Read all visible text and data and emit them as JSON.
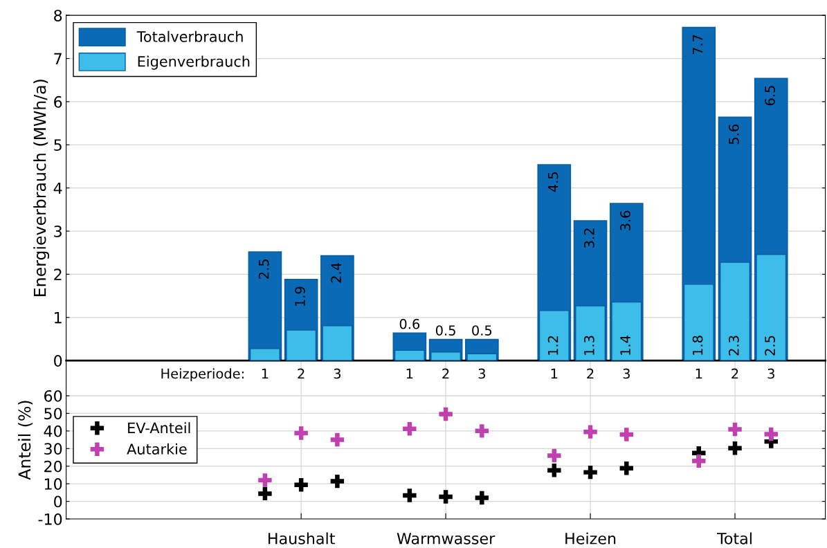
{
  "chart_data": [
    {
      "type": "bar",
      "ylabel": "Energieverbrauch (MWh/a)",
      "categories": [
        null,
        null,
        null,
        null,
        null,
        "1",
        "2",
        "3",
        null,
        "1",
        "2",
        "3",
        null,
        "1",
        "2",
        "3",
        null,
        "1",
        "2",
        "3",
        null
      ],
      "series": [
        {
          "name": "Totalverbrauch",
          "color": "#0b6ab5",
          "values": [
            null,
            null,
            null,
            null,
            null,
            2.52,
            1.88,
            2.43,
            null,
            0.64,
            0.49,
            0.49,
            null,
            4.54,
            3.24,
            3.64,
            null,
            7.72,
            5.64,
            6.54,
            null
          ],
          "value_labels": [
            null,
            null,
            null,
            null,
            null,
            "2.5",
            "1.9",
            "2.4",
            null,
            "0.6",
            "0.5",
            "0.5",
            null,
            "4.5",
            "3.2",
            "3.6",
            null,
            "7.7",
            "5.6",
            "6.5",
            null
          ]
        },
        {
          "name": "Eigenverbrauch",
          "color": "#3dbde9",
          "values": [
            null,
            null,
            null,
            null,
            null,
            0.28,
            0.71,
            0.81,
            null,
            0.24,
            0.2,
            0.16,
            null,
            1.16,
            1.27,
            1.36,
            null,
            1.77,
            2.28,
            2.46,
            null
          ],
          "value_labels": [
            null,
            null,
            null,
            null,
            null,
            null,
            null,
            null,
            null,
            null,
            null,
            null,
            null,
            "1.2",
            "1.3",
            "1.4",
            null,
            "1.8",
            "2.3",
            "2.5",
            null
          ]
        }
      ],
      "ylim": [
        0,
        8
      ],
      "yticks": [
        0,
        1,
        2,
        3,
        4,
        5,
        6,
        7,
        8
      ],
      "grid": "y",
      "legend": "top left",
      "annotations": [
        "Heizperiode:"
      ]
    },
    {
      "type": "scatter",
      "ylabel": "Anteil (%)",
      "categories": [
        null,
        null,
        null,
        null,
        null,
        null,
        "Haushalt",
        null,
        null,
        null,
        "Warmwasser",
        null,
        null,
        null,
        "Heizen",
        null,
        null,
        null,
        "Total",
        null,
        null
      ],
      "series": [
        {
          "name": "EV-Anteil",
          "color": "#000000",
          "values": [
            null,
            null,
            null,
            null,
            null,
            4.4,
            9.4,
            11.4,
            null,
            3.4,
            2.6,
            2.0,
            null,
            17.6,
            16.5,
            18.8,
            null,
            27.5,
            30.2,
            34.0,
            null
          ]
        },
        {
          "name": "Autarkie",
          "color": "#c040b0",
          "values": [
            null,
            null,
            null,
            null,
            null,
            12.0,
            38.8,
            35.0,
            null,
            41.2,
            49.6,
            40.0,
            null,
            26.0,
            39.5,
            38.0,
            null,
            22.9,
            40.9,
            38.2,
            null
          ]
        }
      ],
      "ylim": [
        -10,
        80
      ],
      "yticks": [
        -10,
        0,
        10,
        20,
        30,
        40,
        50,
        60
      ],
      "grid": true,
      "legend": "left",
      "marker": "cross"
    }
  ]
}
